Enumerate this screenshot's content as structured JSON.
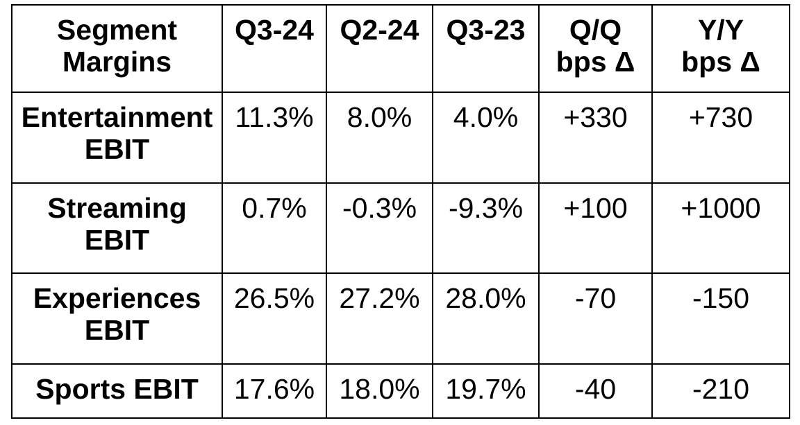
{
  "chart_data": {
    "type": "table",
    "columns": [
      [
        "Segment",
        "Margins"
      ],
      [
        "Q3-24"
      ],
      [
        "Q2-24"
      ],
      [
        "Q3-23"
      ],
      [
        "Q/Q",
        "bps Δ"
      ],
      [
        "Y/Y",
        "bps Δ"
      ]
    ],
    "rows": [
      {
        "label": [
          "Entertainment",
          "EBIT"
        ],
        "values": [
          "11.3%",
          "8.0%",
          "4.0%",
          "+330",
          "+730"
        ]
      },
      {
        "label": [
          "Streaming",
          "EBIT"
        ],
        "values": [
          "0.7%",
          "-0.3%",
          "-9.3%",
          "+100",
          "+1000"
        ]
      },
      {
        "label": [
          "Experiences",
          "EBIT"
        ],
        "values": [
          "26.5%",
          "27.2%",
          "28.0%",
          "-70",
          "-150"
        ]
      },
      {
        "label": [
          "Sports EBIT"
        ],
        "values": [
          "17.6%",
          "18.0%",
          "19.7%",
          "-40",
          "-210"
        ]
      }
    ]
  }
}
